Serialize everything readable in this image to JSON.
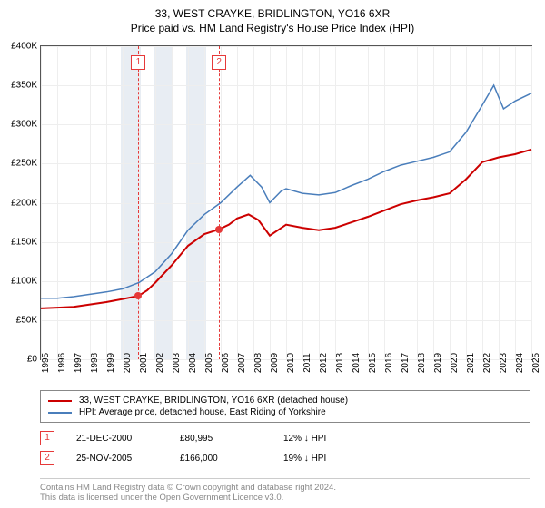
{
  "title": "33, WEST CRAYKE, BRIDLINGTON, YO16 6XR",
  "subtitle": "Price paid vs. HM Land Registry's House Price Index (HPI)",
  "chart": {
    "type": "line",
    "ylim": [
      0,
      400000
    ],
    "ytick_step": 50000,
    "yticks": [
      "£0",
      "£50K",
      "£100K",
      "£150K",
      "£200K",
      "£250K",
      "£300K",
      "£350K",
      "£400K"
    ],
    "xlim": [
      1995,
      2025
    ],
    "xticks": [
      1995,
      1996,
      1997,
      1998,
      1999,
      2000,
      2001,
      2002,
      2003,
      2004,
      2005,
      2006,
      2007,
      2008,
      2009,
      2010,
      2011,
      2012,
      2013,
      2014,
      2015,
      2016,
      2017,
      2018,
      2019,
      2020,
      2021,
      2022,
      2023,
      2024,
      2025
    ],
    "shade_bands": [
      [
        1999.9,
        2001.1
      ],
      [
        2001.9,
        2003.1
      ],
      [
        2003.9,
        2005.1
      ]
    ],
    "grid_color": "#eeeeee",
    "background_color": "#ffffff",
    "series": [
      {
        "name": "33, WEST CRAYKE, BRIDLINGTON, YO16 6XR (detached house)",
        "color": "#cc0000",
        "width": 2,
        "data": [
          [
            1995,
            65000
          ],
          [
            1996,
            66000
          ],
          [
            1997,
            67000
          ],
          [
            1998,
            70000
          ],
          [
            1999,
            73000
          ],
          [
            2000,
            77000
          ],
          [
            2000.97,
            80995
          ],
          [
            2001.5,
            88000
          ],
          [
            2002,
            98000
          ],
          [
            2003,
            120000
          ],
          [
            2004,
            145000
          ],
          [
            2005,
            160000
          ],
          [
            2005.9,
            166000
          ],
          [
            2006.5,
            172000
          ],
          [
            2007,
            180000
          ],
          [
            2007.7,
            185000
          ],
          [
            2008.3,
            178000
          ],
          [
            2009,
            158000
          ],
          [
            2009.5,
            165000
          ],
          [
            2010,
            172000
          ],
          [
            2011,
            168000
          ],
          [
            2012,
            165000
          ],
          [
            2013,
            168000
          ],
          [
            2014,
            175000
          ],
          [
            2015,
            182000
          ],
          [
            2016,
            190000
          ],
          [
            2017,
            198000
          ],
          [
            2018,
            203000
          ],
          [
            2019,
            207000
          ],
          [
            2020,
            212000
          ],
          [
            2021,
            230000
          ],
          [
            2022,
            252000
          ],
          [
            2023,
            258000
          ],
          [
            2024,
            262000
          ],
          [
            2025,
            268000
          ]
        ]
      },
      {
        "name": "HPI: Average price, detached house, East Riding of Yorkshire",
        "color": "#4a7ebb",
        "width": 1.5,
        "data": [
          [
            1995,
            78000
          ],
          [
            1996,
            78000
          ],
          [
            1997,
            80000
          ],
          [
            1998,
            83000
          ],
          [
            1999,
            86000
          ],
          [
            2000,
            90000
          ],
          [
            2001,
            98000
          ],
          [
            2002,
            112000
          ],
          [
            2003,
            135000
          ],
          [
            2004,
            165000
          ],
          [
            2005,
            185000
          ],
          [
            2006,
            200000
          ],
          [
            2007,
            220000
          ],
          [
            2007.8,
            235000
          ],
          [
            2008.5,
            220000
          ],
          [
            2009,
            200000
          ],
          [
            2009.7,
            215000
          ],
          [
            2010,
            218000
          ],
          [
            2011,
            212000
          ],
          [
            2012,
            210000
          ],
          [
            2013,
            213000
          ],
          [
            2014,
            222000
          ],
          [
            2015,
            230000
          ],
          [
            2016,
            240000
          ],
          [
            2017,
            248000
          ],
          [
            2018,
            253000
          ],
          [
            2019,
            258000
          ],
          [
            2020,
            265000
          ],
          [
            2021,
            290000
          ],
          [
            2022,
            325000
          ],
          [
            2022.7,
            350000
          ],
          [
            2023.3,
            320000
          ],
          [
            2024,
            330000
          ],
          [
            2025,
            340000
          ]
        ]
      }
    ],
    "sale_markers": [
      {
        "n": "1",
        "x": 2000.97,
        "y": 80995
      },
      {
        "n": "2",
        "x": 2005.9,
        "y": 166000
      }
    ]
  },
  "legend": {
    "sales": [
      {
        "n": "1",
        "date": "21-DEC-2000",
        "price": "£80,995",
        "delta": "12% ↓ HPI"
      },
      {
        "n": "2",
        "date": "25-NOV-2005",
        "price": "£166,000",
        "delta": "19% ↓ HPI"
      }
    ]
  },
  "footer": {
    "l1": "Contains HM Land Registry data © Crown copyright and database right 2024.",
    "l2": "This data is licensed under the Open Government Licence v3.0."
  }
}
